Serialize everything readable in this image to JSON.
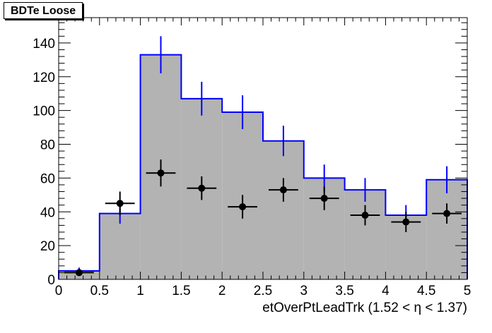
{
  "chart_data": {
    "type": "histogram",
    "title": "BDTe Loose",
    "xlabel": "etOverPtLeadTrk (1.52 <   η < 1.37)",
    "ylabel": "",
    "xlim": [
      0,
      5
    ],
    "ylim": [
      0,
      155
    ],
    "x_ticks": [
      "0",
      "0.5",
      "1",
      "1.5",
      "2",
      "2.5",
      "3",
      "3.5",
      "4",
      "4.5",
      "5"
    ],
    "y_ticks": [
      "0",
      "20",
      "40",
      "60",
      "80",
      "100",
      "120",
      "140"
    ],
    "grid": false,
    "legend": "none",
    "bin_edges": [
      0,
      0.5,
      1,
      1.5,
      2,
      2.5,
      3,
      3.5,
      4,
      4.5,
      5
    ],
    "series": [
      {
        "style": "filled-histogram",
        "fill_color": "#b3b3b3",
        "line_color": "#0000ff",
        "values": [
          5,
          39,
          133,
          107,
          99,
          82,
          60,
          53,
          38,
          59
        ],
        "errors": [
          2,
          6,
          11,
          10,
          10,
          9,
          8,
          7,
          6,
          8
        ]
      },
      {
        "style": "points",
        "color": "#000000",
        "x": [
          0.25,
          0.75,
          1.25,
          1.75,
          2.25,
          2.75,
          3.25,
          3.75,
          4.25,
          4.75
        ],
        "values": [
          4,
          45,
          63,
          54,
          43,
          53,
          48,
          38,
          34,
          39
        ],
        "errors": [
          2,
          7,
          8,
          7,
          7,
          7,
          7,
          6,
          6,
          6
        ]
      }
    ]
  }
}
